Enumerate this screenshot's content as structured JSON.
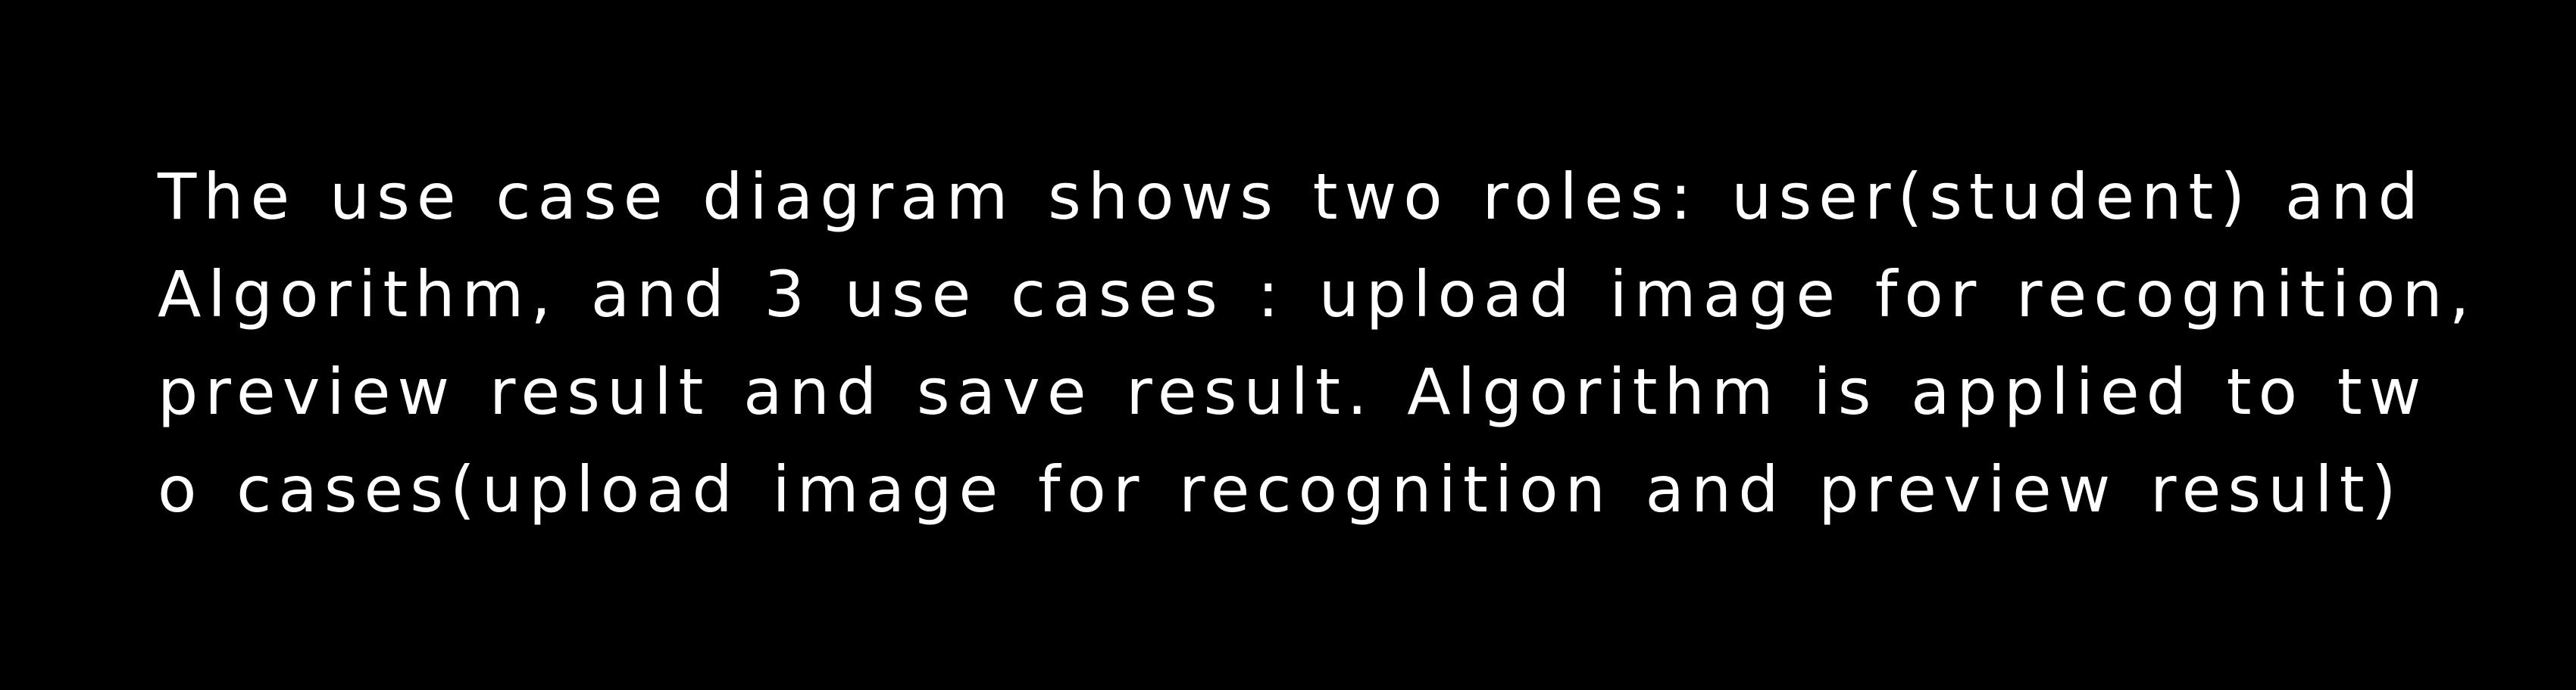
{
  "document": {
    "lines": [
      "The use case diagram shows two roles: user(student) and",
      "Algorithm, and 3 use cases : upload image for recognition,",
      "preview result and save result. Algorithm is applied to tw",
      "o cases(upload image for recognition and preview result)"
    ]
  },
  "colors": {
    "background": "#000000",
    "text": "#ffffff"
  }
}
